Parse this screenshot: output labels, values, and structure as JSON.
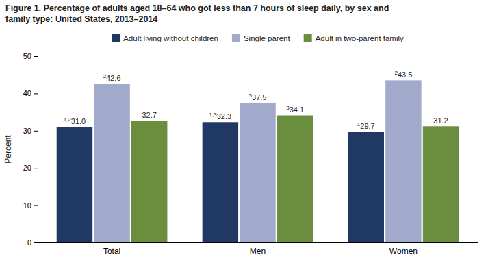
{
  "chart_data": {
    "type": "bar",
    "title": "Figure 1. Percentage of adults aged 18–64 who got less than 7 hours of sleep daily, by sex and\nfamily type: United States, 2013–2014",
    "categories": [
      "Total",
      "Men",
      "Women"
    ],
    "series": [
      {
        "name": "Adult living without children",
        "color": "#1f3864",
        "values": [
          31.0,
          32.3,
          29.7
        ],
        "value_labels": [
          "31.0",
          "32.3",
          "29.7"
        ],
        "superscripts": [
          "1,2",
          "1,3",
          "1"
        ]
      },
      {
        "name": "Single parent",
        "color": "#a2aacc",
        "values": [
          42.6,
          37.5,
          43.5
        ],
        "value_labels": [
          "42.6",
          "37.5",
          "43.5"
        ],
        "superscripts": [
          "2",
          "3",
          "2"
        ]
      },
      {
        "name": "Adult in two-parent family",
        "color": "#6b8e3e",
        "values": [
          32.7,
          34.1,
          31.2
        ],
        "value_labels": [
          "32.7",
          "34.1",
          "31.2"
        ],
        "superscripts": [
          null,
          "3",
          null
        ]
      }
    ],
    "ylabel": "Percent",
    "ylim": [
      0,
      50
    ],
    "yticks": [
      0,
      10,
      20,
      30,
      40,
      50
    ],
    "grid": false,
    "legend": "top",
    "data_labels": true
  }
}
